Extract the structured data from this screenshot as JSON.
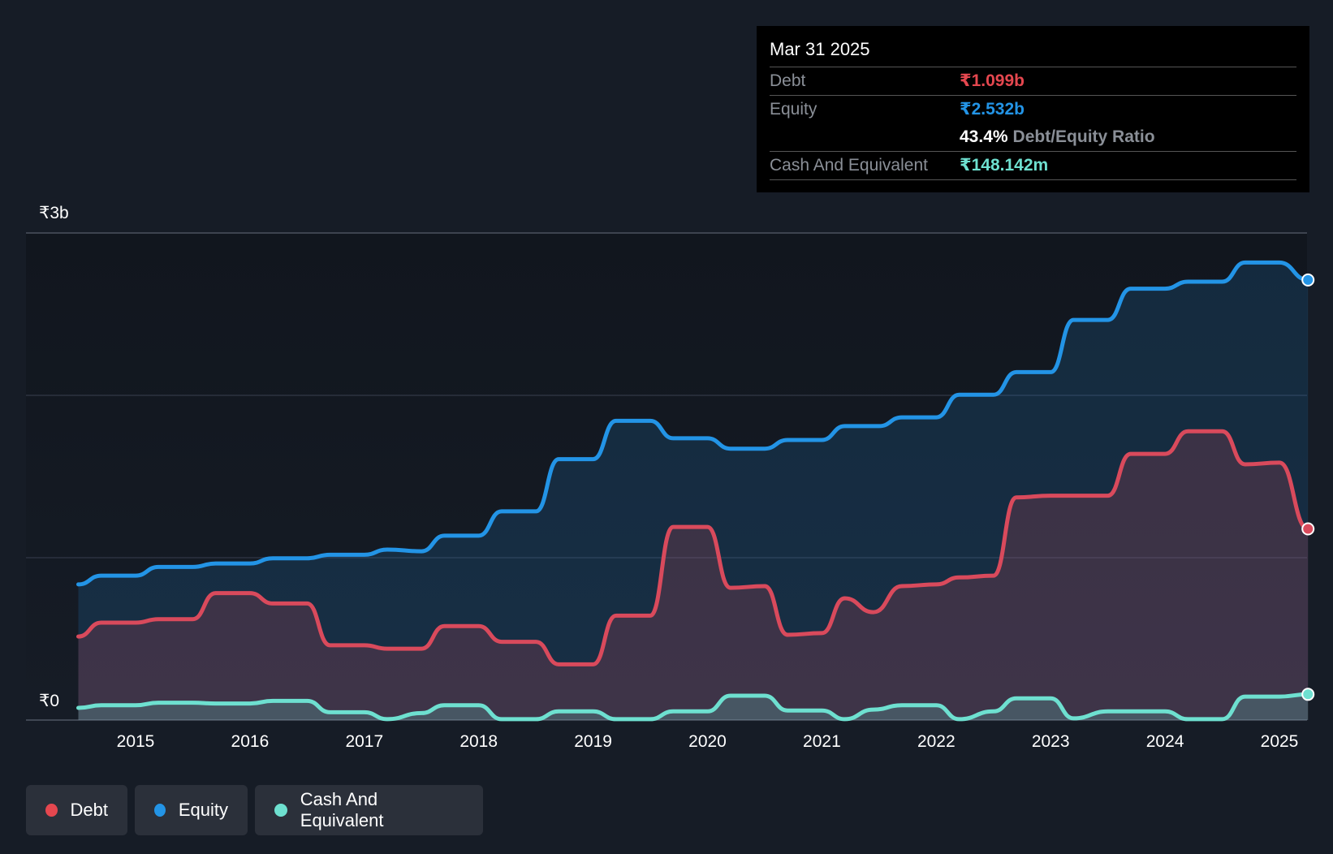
{
  "tooltip": {
    "date": "Mar 31 2025",
    "debt_label": "Debt",
    "debt_value": "₹1.099b",
    "equity_label": "Equity",
    "equity_value": "₹2.532b",
    "ratio_value": "43.4%",
    "ratio_label": "Debt/Equity Ratio",
    "cash_label": "Cash And Equivalent",
    "cash_value": "₹148.142m"
  },
  "legend": [
    {
      "label": "Debt",
      "color": "#e5474f"
    },
    {
      "label": "Equity",
      "color": "#2394e6"
    },
    {
      "label": "Cash And Equivalent",
      "color": "#6ee0d0"
    }
  ],
  "colors": {
    "debt": "#d94a5c",
    "equity": "#2394e6",
    "cash": "#6ee0d0",
    "background": "#161c26"
  },
  "chart_data": {
    "type": "area",
    "y_tick_labels": {
      "top": "₹3b",
      "bottom": "₹0"
    },
    "ylim": [
      0,
      2.8
    ],
    "xlim": [
      2014.5,
      2025.25
    ],
    "x_ticks": [
      2015,
      2016,
      2017,
      2018,
      2019,
      2020,
      2021,
      2022,
      2023,
      2024,
      2025
    ],
    "x_tick_labels": [
      "2015",
      "2016",
      "2017",
      "2018",
      "2019",
      "2020",
      "2021",
      "2022",
      "2023",
      "2024",
      "2025"
    ],
    "grid": true,
    "legend_position": "bottom-left",
    "series": [
      {
        "name": "Equity",
        "color": "#2394e6",
        "points": [
          [
            2014.5,
            0.78
          ],
          [
            2014.7,
            0.83
          ],
          [
            2015.0,
            0.83
          ],
          [
            2015.2,
            0.88
          ],
          [
            2015.5,
            0.88
          ],
          [
            2015.7,
            0.9
          ],
          [
            2016.0,
            0.9
          ],
          [
            2016.2,
            0.93
          ],
          [
            2016.5,
            0.93
          ],
          [
            2016.7,
            0.95
          ],
          [
            2017.0,
            0.95
          ],
          [
            2017.2,
            0.98
          ],
          [
            2017.5,
            0.97
          ],
          [
            2017.7,
            1.06
          ],
          [
            2018.0,
            1.06
          ],
          [
            2018.2,
            1.2
          ],
          [
            2018.5,
            1.2
          ],
          [
            2018.7,
            1.5
          ],
          [
            2019.0,
            1.5
          ],
          [
            2019.2,
            1.72
          ],
          [
            2019.5,
            1.72
          ],
          [
            2019.7,
            1.62
          ],
          [
            2020.0,
            1.62
          ],
          [
            2020.2,
            1.56
          ],
          [
            2020.5,
            1.56
          ],
          [
            2020.7,
            1.61
          ],
          [
            2021.0,
            1.61
          ],
          [
            2021.2,
            1.69
          ],
          [
            2021.5,
            1.69
          ],
          [
            2021.7,
            1.74
          ],
          [
            2022.0,
            1.74
          ],
          [
            2022.2,
            1.87
          ],
          [
            2022.5,
            1.87
          ],
          [
            2022.7,
            2.0
          ],
          [
            2023.0,
            2.0
          ],
          [
            2023.2,
            2.3
          ],
          [
            2023.5,
            2.3
          ],
          [
            2023.7,
            2.48
          ],
          [
            2024.0,
            2.48
          ],
          [
            2024.2,
            2.52
          ],
          [
            2024.5,
            2.52
          ],
          [
            2024.7,
            2.63
          ],
          [
            2025.0,
            2.63
          ],
          [
            2025.25,
            2.53
          ]
        ]
      },
      {
        "name": "Debt",
        "color": "#d94a5c",
        "points": [
          [
            2014.5,
            0.48
          ],
          [
            2014.7,
            0.56
          ],
          [
            2015.0,
            0.56
          ],
          [
            2015.2,
            0.58
          ],
          [
            2015.5,
            0.58
          ],
          [
            2015.7,
            0.73
          ],
          [
            2016.0,
            0.73
          ],
          [
            2016.2,
            0.67
          ],
          [
            2016.5,
            0.67
          ],
          [
            2016.7,
            0.43
          ],
          [
            2017.0,
            0.43
          ],
          [
            2017.2,
            0.41
          ],
          [
            2017.5,
            0.41
          ],
          [
            2017.7,
            0.54
          ],
          [
            2018.0,
            0.54
          ],
          [
            2018.2,
            0.45
          ],
          [
            2018.5,
            0.45
          ],
          [
            2018.7,
            0.32
          ],
          [
            2019.0,
            0.32
          ],
          [
            2019.2,
            0.6
          ],
          [
            2019.5,
            0.6
          ],
          [
            2019.7,
            1.11
          ],
          [
            2020.0,
            1.11
          ],
          [
            2020.2,
            0.76
          ],
          [
            2020.5,
            0.77
          ],
          [
            2020.7,
            0.49
          ],
          [
            2021.0,
            0.5
          ],
          [
            2021.2,
            0.7
          ],
          [
            2021.45,
            0.62
          ],
          [
            2021.7,
            0.77
          ],
          [
            2022.0,
            0.78
          ],
          [
            2022.2,
            0.82
          ],
          [
            2022.5,
            0.83
          ],
          [
            2022.7,
            1.28
          ],
          [
            2023.0,
            1.29
          ],
          [
            2023.5,
            1.29
          ],
          [
            2023.7,
            1.53
          ],
          [
            2024.0,
            1.53
          ],
          [
            2024.2,
            1.66
          ],
          [
            2024.5,
            1.66
          ],
          [
            2024.7,
            1.47
          ],
          [
            2025.0,
            1.48
          ],
          [
            2025.25,
            1.099
          ]
        ]
      },
      {
        "name": "Cash And Equivalent",
        "color": "#6ee0d0",
        "points": [
          [
            2014.5,
            0.07
          ],
          [
            2014.7,
            0.085
          ],
          [
            2015.0,
            0.085
          ],
          [
            2015.2,
            0.1
          ],
          [
            2015.5,
            0.1
          ],
          [
            2015.7,
            0.095
          ],
          [
            2016.0,
            0.095
          ],
          [
            2016.2,
            0.11
          ],
          [
            2016.5,
            0.11
          ],
          [
            2016.7,
            0.045
          ],
          [
            2017.0,
            0.045
          ],
          [
            2017.2,
            0.005
          ],
          [
            2017.5,
            0.04
          ],
          [
            2017.7,
            0.085
          ],
          [
            2018.0,
            0.085
          ],
          [
            2018.2,
            0.005
          ],
          [
            2018.5,
            0.005
          ],
          [
            2018.7,
            0.05
          ],
          [
            2019.0,
            0.05
          ],
          [
            2019.2,
            0.005
          ],
          [
            2019.5,
            0.005
          ],
          [
            2019.7,
            0.05
          ],
          [
            2020.0,
            0.05
          ],
          [
            2020.2,
            0.14
          ],
          [
            2020.5,
            0.14
          ],
          [
            2020.7,
            0.055
          ],
          [
            2021.0,
            0.055
          ],
          [
            2021.2,
            0.005
          ],
          [
            2021.45,
            0.06
          ],
          [
            2021.7,
            0.085
          ],
          [
            2022.0,
            0.085
          ],
          [
            2022.2,
            0.005
          ],
          [
            2022.5,
            0.05
          ],
          [
            2022.7,
            0.125
          ],
          [
            2023.0,
            0.125
          ],
          [
            2023.2,
            0.01
          ],
          [
            2023.5,
            0.05
          ],
          [
            2023.7,
            0.05
          ],
          [
            2024.0,
            0.05
          ],
          [
            2024.2,
            0.005
          ],
          [
            2024.5,
            0.005
          ],
          [
            2024.7,
            0.135
          ],
          [
            2025.0,
            0.135
          ],
          [
            2025.25,
            0.148
          ]
        ]
      }
    ]
  }
}
